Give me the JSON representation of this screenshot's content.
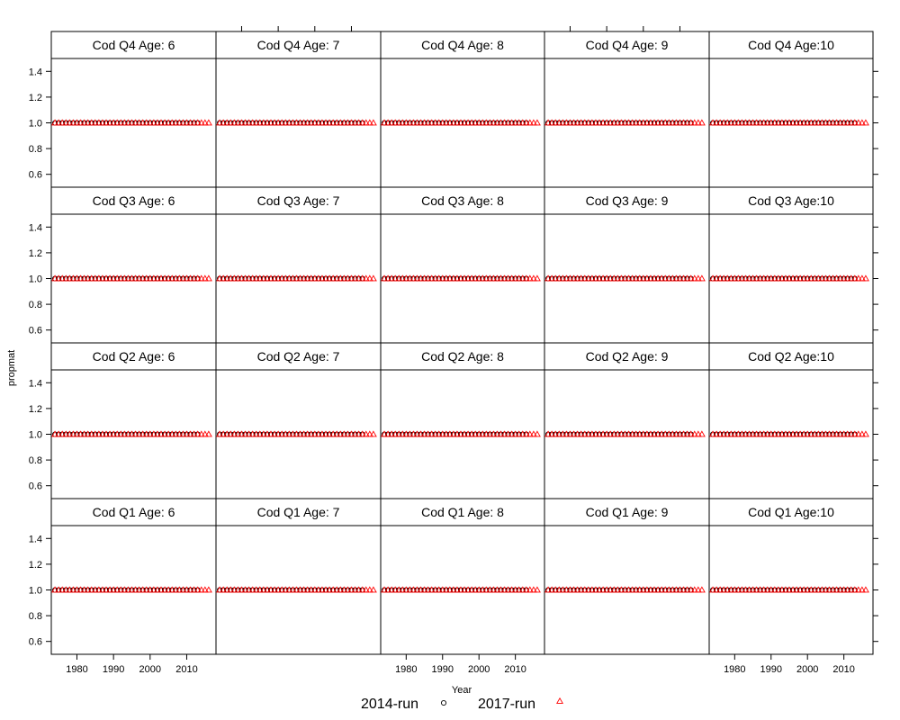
{
  "chart_data": {
    "type": "scatter",
    "xlabel": "Year",
    "ylabel": "propmat",
    "xlim": [
      1973,
      2018
    ],
    "ylim": [
      0.5,
      1.5
    ],
    "x_ticks": [
      1980,
      1990,
      2000,
      2010
    ],
    "y_ticks": [
      0.6,
      0.8,
      1.0,
      1.2,
      1.4
    ],
    "y_tick_labels": [
      "0.6",
      "0.8",
      "1.0",
      "1.2",
      "1.4"
    ],
    "years": [
      1974,
      1975,
      1976,
      1977,
      1978,
      1979,
      1980,
      1981,
      1982,
      1983,
      1984,
      1985,
      1986,
      1987,
      1988,
      1989,
      1990,
      1991,
      1992,
      1993,
      1994,
      1995,
      1996,
      1997,
      1998,
      1999,
      2000,
      2001,
      2002,
      2003,
      2004,
      2005,
      2006,
      2007,
      2008,
      2009,
      2010,
      2011,
      2012,
      2013,
      2014,
      2015,
      2016
    ],
    "value_all_panels": 1.0,
    "series": [
      {
        "name": "2014-run",
        "symbol": "circle",
        "color": "#000000",
        "last_year": 2013
      },
      {
        "name": "2017-run",
        "symbol": "triangle",
        "color": "#ff0000",
        "last_year": 2016
      }
    ],
    "panel_rows": [
      [
        "Cod Q4 Age: 6",
        "Cod Q4 Age: 7",
        "Cod Q4 Age: 8",
        "Cod Q4 Age: 9",
        "Cod Q4 Age:10"
      ],
      [
        "Cod Q3 Age: 6",
        "Cod Q3 Age: 7",
        "Cod Q3 Age: 8",
        "Cod Q3 Age: 9",
        "Cod Q3 Age:10"
      ],
      [
        "Cod Q2 Age: 6",
        "Cod Q2 Age: 7",
        "Cod Q2 Age: 8",
        "Cod Q2 Age: 9",
        "Cod Q2 Age:10"
      ],
      [
        "Cod Q1 Age: 6",
        "Cod Q1 Age: 7",
        "Cod Q1 Age: 8",
        "Cod Q1 Age: 9",
        "Cod Q1 Age:10"
      ]
    ],
    "legend_position": "bottom"
  }
}
